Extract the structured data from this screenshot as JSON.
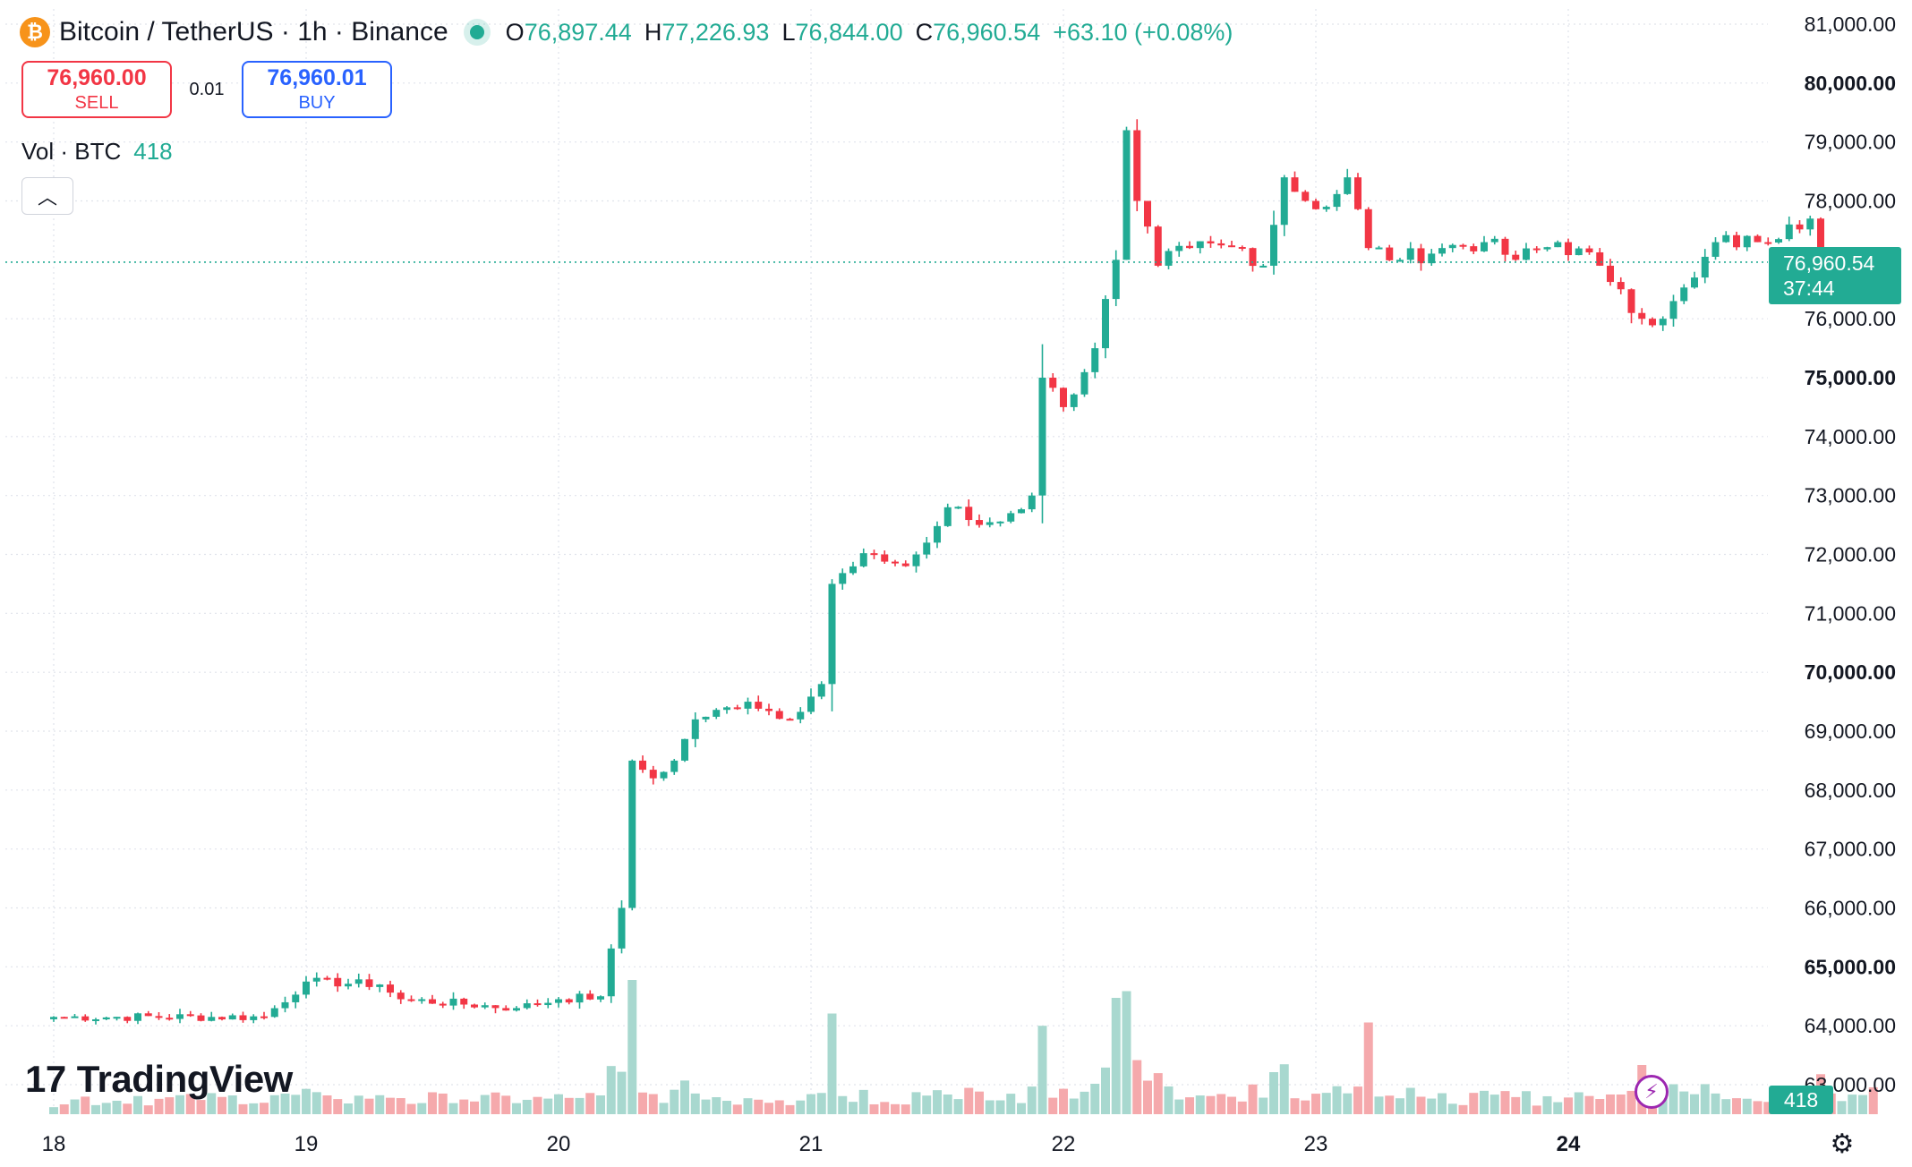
{
  "header": {
    "coin_icon": "bitcoin-icon",
    "title": "Bitcoin / TetherUS · 1h · Binance",
    "open_label": "O",
    "open": "76,897.44",
    "high_label": "H",
    "high": "77,226.93",
    "low_label": "L",
    "low": "76,844.00",
    "close_label": "C",
    "close": "76,960.54",
    "change": "+63.10 (+0.08%)"
  },
  "trade": {
    "sell_price": "76,960.00",
    "sell_label": "SELL",
    "spread": "0.01",
    "buy_price": "76,960.01",
    "buy_label": "BUY"
  },
  "volume_legend": {
    "label": "Vol · BTC",
    "value": "418"
  },
  "collapse_icon": "chevron-up-icon",
  "watermark": {
    "logo": "17",
    "text": "TradingView"
  },
  "last_price": {
    "price": "76,960.54",
    "countdown": "37:44"
  },
  "last_volume": "418",
  "colors": {
    "up": "#22ab94",
    "down": "#f23645",
    "up_volume": "#a8d8cf",
    "down_volume": "#f5a9ac",
    "grid": "#e0e3eb"
  },
  "chart_data": {
    "type": "candlestick",
    "symbol": "Bitcoin / TetherUS",
    "interval": "1h",
    "exchange": "Binance",
    "x_tick_labels": [
      "18",
      "19",
      "20",
      "21",
      "22",
      "23",
      "24"
    ],
    "x_tick_bold": [
      "24"
    ],
    "y_tick_labels": [
      "81,000.00",
      "80,000.00",
      "79,000.00",
      "78,000.00",
      "76,000.00",
      "75,000.00",
      "74,000.00",
      "73,000.00",
      "72,000.00",
      "71,000.00",
      "70,000.00",
      "69,000.00",
      "68,000.00",
      "67,000.00",
      "66,000.00",
      "65,000.00",
      "64,000.00",
      "63,000.00"
    ],
    "y_tick_bold": [
      "80,000.00",
      "75,000.00",
      "70,000.00",
      "65,000.00"
    ],
    "ylim": [
      62700,
      81300
    ],
    "last_price_line": 76960.54,
    "grid": true,
    "keyframes": [
      {
        "hour": 0,
        "price": 64150
      },
      {
        "hour": 20,
        "price": 64150
      },
      {
        "hour": 24,
        "price": 64750
      },
      {
        "hour": 31,
        "price": 64700
      },
      {
        "hour": 33,
        "price": 64450
      },
      {
        "hour": 44,
        "price": 64300
      },
      {
        "hour": 48,
        "price": 64450
      },
      {
        "hour": 52,
        "price": 64500
      },
      {
        "hour": 54,
        "price": 66000
      },
      {
        "hour": 55,
        "price": 68500
      },
      {
        "hour": 57,
        "price": 68200
      },
      {
        "hour": 59,
        "price": 68500
      },
      {
        "hour": 61,
        "price": 69200
      },
      {
        "hour": 66,
        "price": 69500
      },
      {
        "hour": 70,
        "price": 69200
      },
      {
        "hour": 73,
        "price": 69800
      },
      {
        "hour": 74,
        "price": 71500
      },
      {
        "hour": 78,
        "price": 72000
      },
      {
        "hour": 81,
        "price": 71800
      },
      {
        "hour": 83,
        "price": 72200
      },
      {
        "hour": 85,
        "price": 72800
      },
      {
        "hour": 88,
        "price": 72500
      },
      {
        "hour": 91,
        "price": 72700
      },
      {
        "hour": 93,
        "price": 73000
      },
      {
        "hour": 94,
        "price": 75000
      },
      {
        "hour": 96,
        "price": 74500
      },
      {
        "hour": 99,
        "price": 75500
      },
      {
        "hour": 101,
        "price": 77000
      },
      {
        "hour": 102,
        "price": 79200
      },
      {
        "hour": 103,
        "price": 78000
      },
      {
        "hour": 105,
        "price": 76900
      },
      {
        "hour": 108,
        "price": 77200
      },
      {
        "hour": 113,
        "price": 77200
      },
      {
        "hour": 115,
        "price": 76900
      },
      {
        "hour": 117,
        "price": 78400
      },
      {
        "hour": 119,
        "price": 78000
      },
      {
        "hour": 121,
        "price": 77900
      },
      {
        "hour": 123,
        "price": 78400
      },
      {
        "hour": 125,
        "price": 77200
      },
      {
        "hour": 128,
        "price": 77000
      },
      {
        "hour": 132,
        "price": 77200
      },
      {
        "hour": 136,
        "price": 77300
      },
      {
        "hour": 139,
        "price": 77000
      },
      {
        "hour": 143,
        "price": 77300
      },
      {
        "hour": 147,
        "price": 76900
      },
      {
        "hour": 149,
        "price": 76500
      },
      {
        "hour": 151,
        "price": 76000
      },
      {
        "hour": 153,
        "price": 76000
      },
      {
        "hour": 156,
        "price": 76700
      },
      {
        "hour": 158,
        "price": 77300
      },
      {
        "hour": 162,
        "price": 77300
      },
      {
        "hour": 165,
        "price": 77600
      },
      {
        "hour": 167,
        "price": 77700
      },
      {
        "hour": 169,
        "price": 76900
      },
      {
        "hour": 173,
        "price": 76960.54
      }
    ],
    "volume_peaks": [
      {
        "hour": 55,
        "volume": 60
      },
      {
        "hour": 74,
        "volume": 45
      },
      {
        "hour": 101,
        "volume": 52
      },
      {
        "hour": 102,
        "volume": 55
      },
      {
        "hour": 125,
        "volume": 41
      },
      {
        "hour": 151,
        "volume": 22
      },
      {
        "hour": 173,
        "volume": 418
      }
    ]
  }
}
